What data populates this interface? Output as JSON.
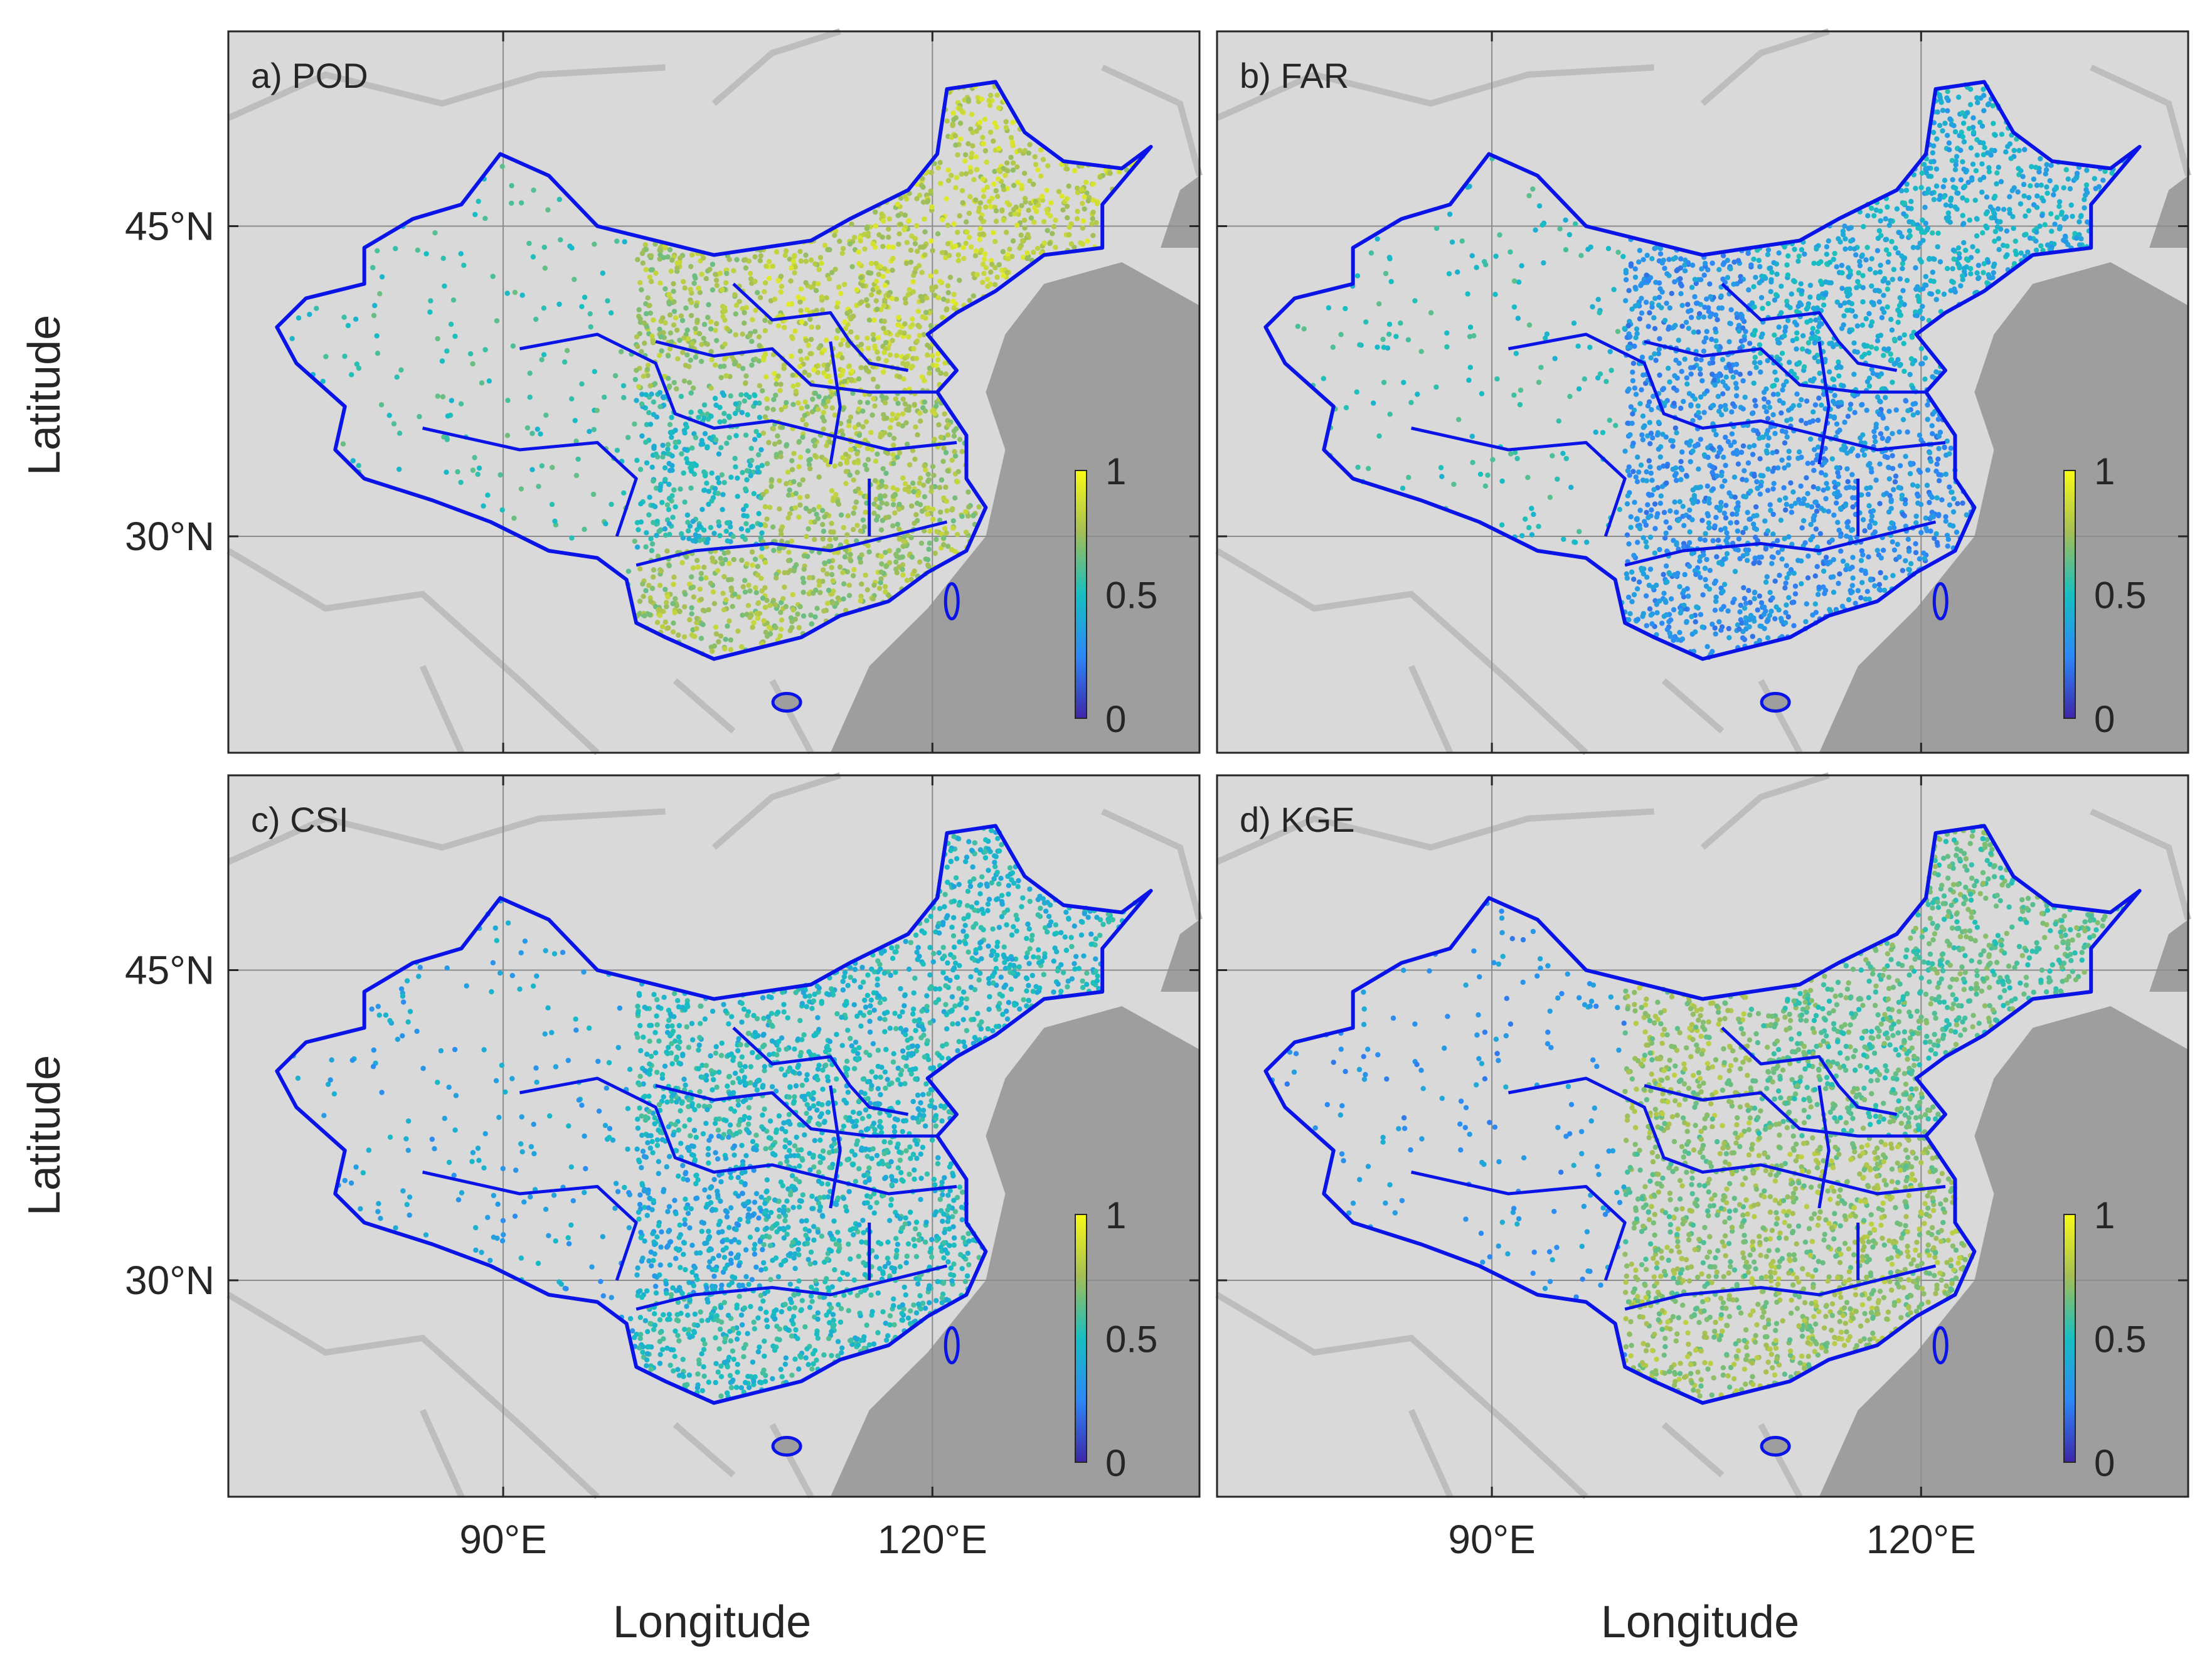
{
  "figure": {
    "x_label": "Longitude",
    "y_label": "Latitude",
    "x_ticks": [
      "90°E",
      "120°E"
    ],
    "y_ticks": [
      "45°N",
      "30°N"
    ],
    "colorbar_ticks": [
      "1",
      "0.5",
      "0"
    ],
    "colorbar_range": [
      0,
      1
    ],
    "colormap": "parula",
    "colors": {
      "boundary": "#0a14e6",
      "land": "#d9d9d9",
      "sea": "#9e9e9e",
      "grid": "#8c8c8c"
    }
  },
  "panels": [
    {
      "label": "a) POD",
      "metric": "POD",
      "north_level": 0.82,
      "northwest_level": 0.55,
      "south_level": 0.75,
      "sichuan_level": 0.5
    },
    {
      "label": "b) FAR",
      "metric": "FAR",
      "north_level": 0.42,
      "northwest_level": 0.52,
      "south_level": 0.3,
      "sichuan_level": 0.3
    },
    {
      "label": "c) CSI",
      "metric": "CSI",
      "north_level": 0.48,
      "northwest_level": 0.38,
      "south_level": 0.5,
      "sichuan_level": 0.4
    },
    {
      "label": "d) KGE",
      "metric": "KGE",
      "north_level": 0.62,
      "northwest_level": 0.32,
      "south_level": 0.72,
      "sichuan_level": 0.68
    }
  ]
}
